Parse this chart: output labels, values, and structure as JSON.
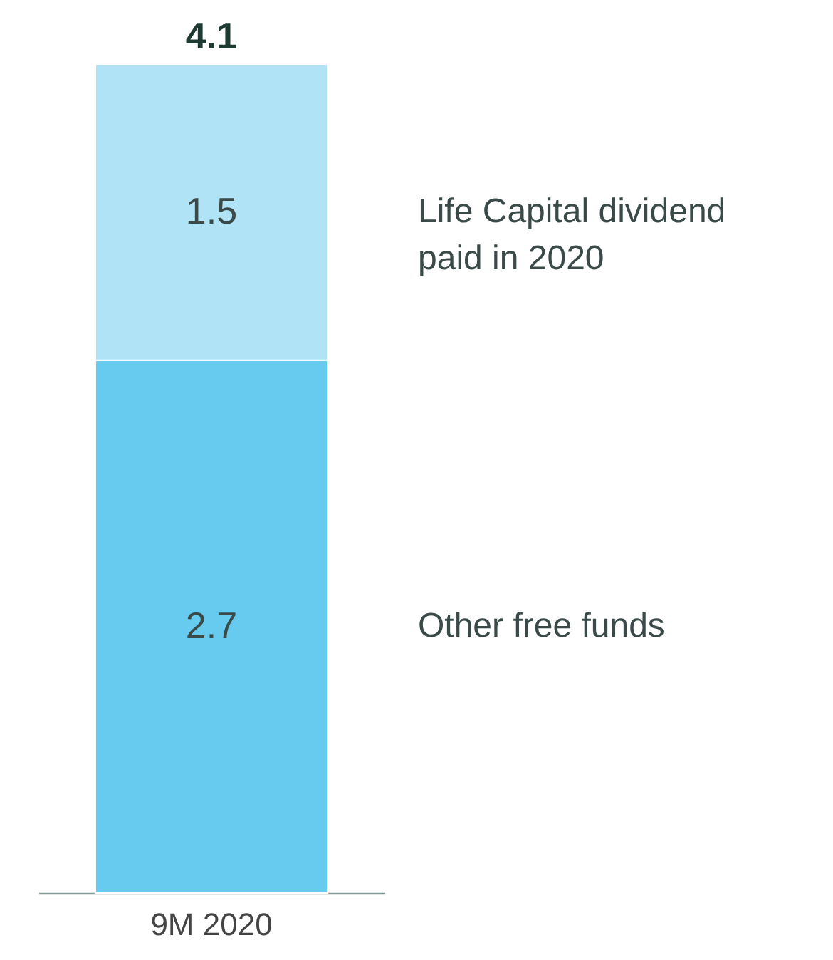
{
  "chart_data": {
    "type": "bar",
    "stacked": true,
    "categories": [
      "9M 2020"
    ],
    "series": [
      {
        "name": "Other free funds",
        "color": "#66cbee",
        "values": [
          2.7
        ]
      },
      {
        "name": "Life Capital dividend paid in 2020",
        "color": "#b0e3f5",
        "values": [
          1.5
        ]
      }
    ],
    "data_labels": true,
    "totals": [
      "4.1"
    ],
    "legend": false,
    "grid": false,
    "tick_labels": "x"
  }
}
